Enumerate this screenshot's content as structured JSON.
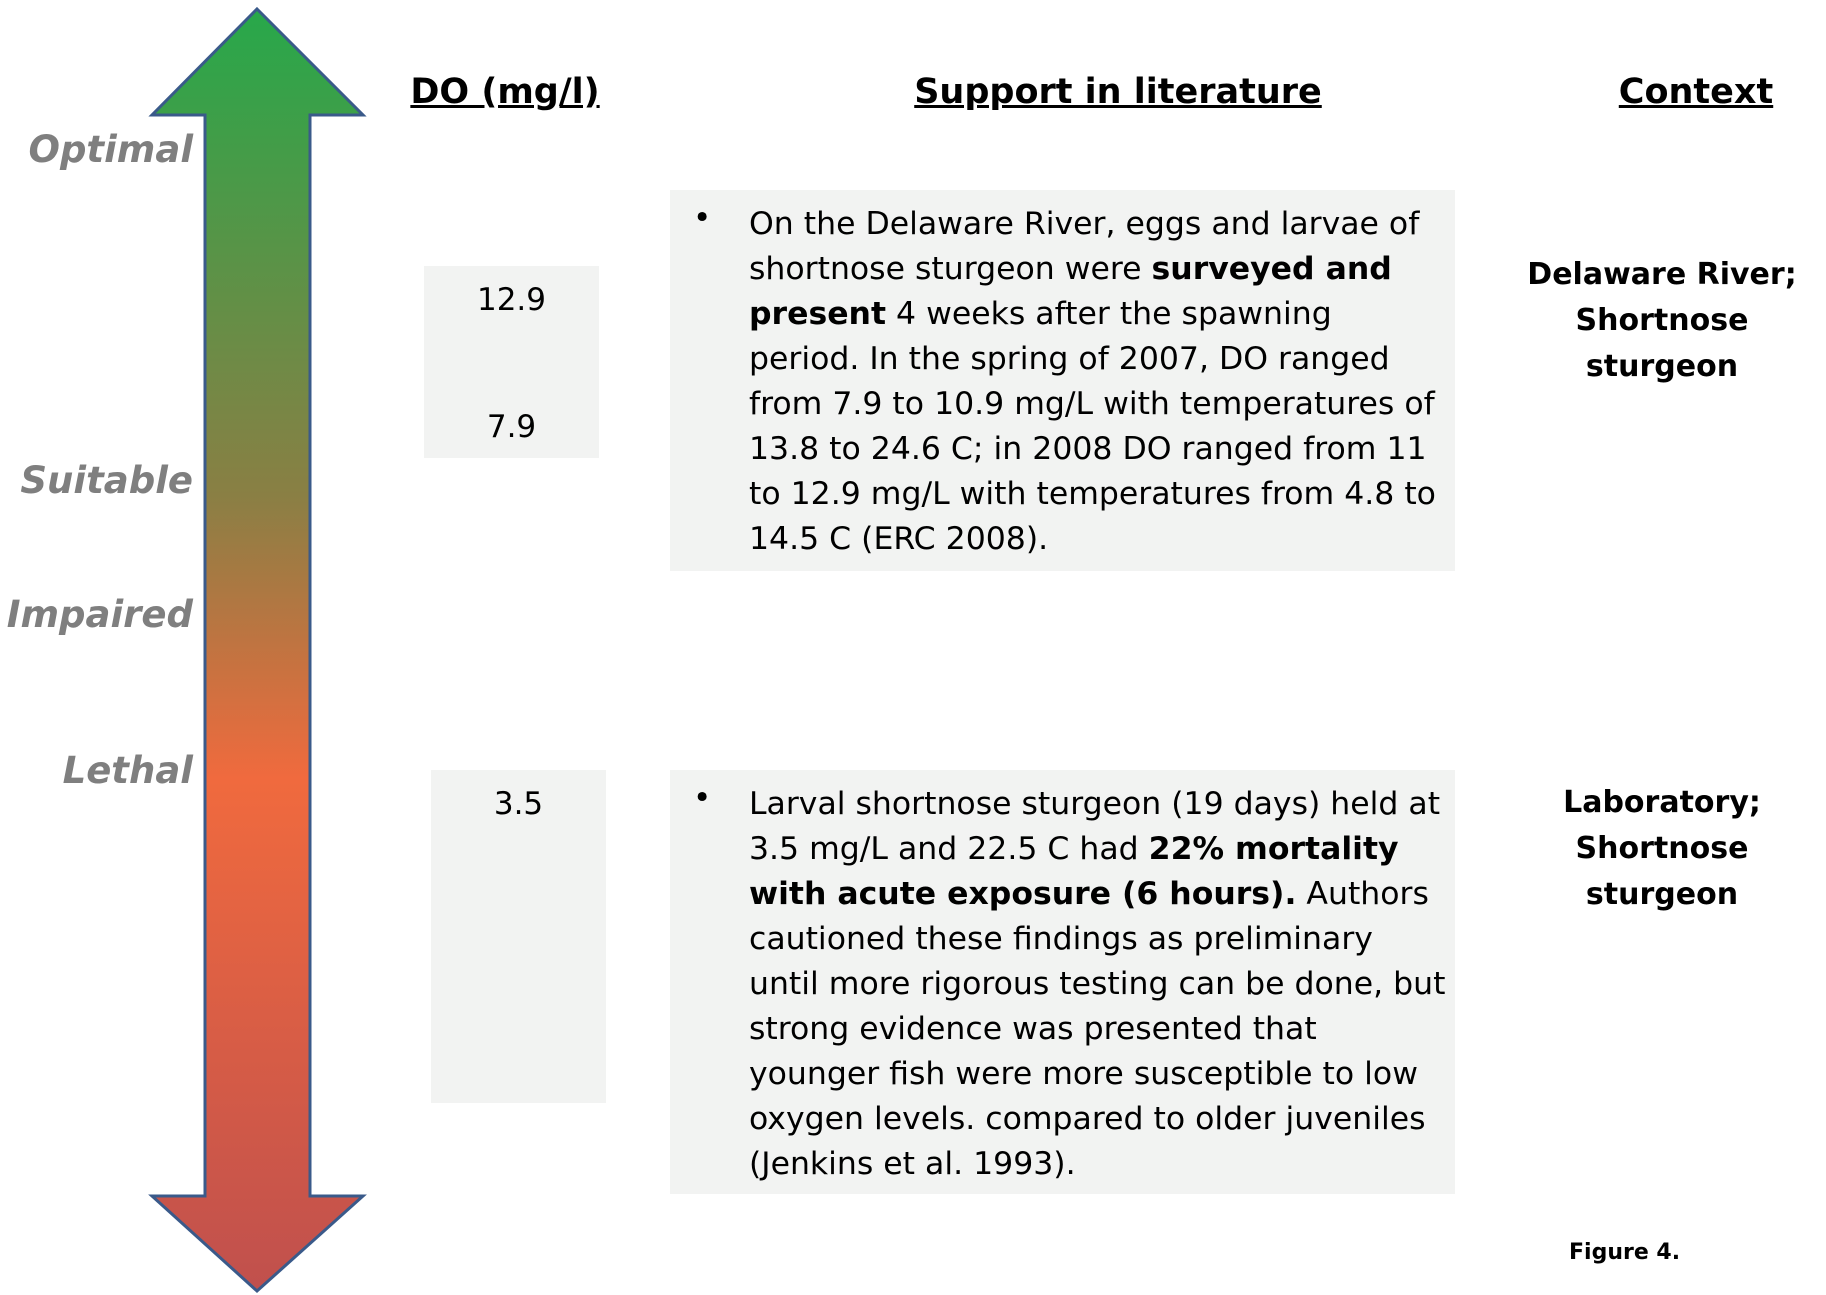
{
  "scale_labels": [
    "Optimal",
    "Suitable",
    "Impaired",
    "Lethal"
  ],
  "headers": {
    "do": "DO (mg/l)",
    "support": "Support in literature",
    "context": "Context"
  },
  "rows": [
    {
      "do": [
        "12.9",
        "7.9"
      ],
      "support": [
        {
          "text": "On the Delaware River, eggs and larvae of shortnose sturgeon were "
        },
        {
          "text": "surveyed and present",
          "bold": true
        },
        {
          "text": " 4 weeks after the spawning period. In the spring of 2007, DO ranged from 7.9 to 10.9 mg/L with temperatures of 13.8 to 24.6 C; in 2008 DO ranged from 11 to 12.9 mg/L with temperatures from 4.8 to 14.5 C (ERC 2008)."
        }
      ],
      "context": [
        "Delaware River;",
        "Shortnose sturgeon"
      ]
    },
    {
      "do": [
        "3.5"
      ],
      "support": [
        {
          "text": "Larval shortnose sturgeon (19 days) held at 3.5 mg/L and 22.5 C had "
        },
        {
          "text": "22% mortality with acute exposure (6 hours).",
          "bold": true
        },
        {
          "text": " Authors cautioned these findings as preliminary until more rigorous testing can be done, but strong evidence was presented that younger fish were more susceptible to low oxygen levels. compared to older juveniles (Jenkins et al. 1993)."
        }
      ],
      "context": [
        "Laboratory;",
        "Shortnose sturgeon"
      ]
    }
  ],
  "figure": "Figure 4."
}
